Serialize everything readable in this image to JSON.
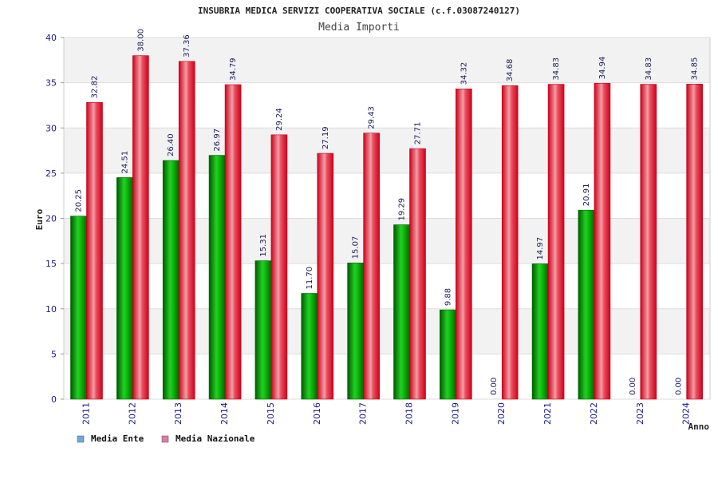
{
  "chart_data": {
    "type": "bar",
    "title": "INSUBRIA MEDICA SERVIZI COOPERATIVA SOCIALE (c.f.03087240127)",
    "subtitle": "Media Importi",
    "xlabel": "Anno",
    "ylabel": "Euro",
    "ylim": [
      0,
      40
    ],
    "yticks": [
      0,
      5,
      10,
      15,
      20,
      25,
      30,
      35,
      40
    ],
    "categories": [
      "2011",
      "2012",
      "2013",
      "2014",
      "2015",
      "2016",
      "2017",
      "2018",
      "2019",
      "2020",
      "2021",
      "2022",
      "2023",
      "2024"
    ],
    "series": [
      {
        "name": "Media Ente",
        "legend_color": "#6fa8e0",
        "bar_color": "#00b400",
        "values": [
          20.25,
          24.51,
          26.4,
          26.97,
          15.31,
          11.7,
          15.07,
          19.29,
          9.88,
          0.0,
          14.97,
          20.91,
          0.0,
          0.0
        ],
        "labels": [
          "20.25",
          "24.51",
          "26.40",
          "26.97",
          "15.31",
          "11.70",
          "15.07",
          "19.29",
          "9.88",
          "0.00",
          "14.97",
          "20.91",
          "0.00",
          "0.00"
        ]
      },
      {
        "name": "Media Nazionale",
        "legend_color": "#e07aa8",
        "bar_color": "#e8101e",
        "values": [
          32.82,
          38.0,
          37.36,
          34.79,
          29.24,
          27.19,
          29.43,
          27.71,
          34.32,
          34.68,
          34.83,
          34.94,
          34.83,
          34.85
        ],
        "labels": [
          "32.82",
          "38.00",
          "37.36",
          "34.79",
          "29.24",
          "27.19",
          "29.43",
          "27.71",
          "34.32",
          "34.68",
          "34.83",
          "34.94",
          "34.83",
          "34.85"
        ]
      }
    ],
    "grid": true,
    "legend_position": "bottom-left"
  }
}
